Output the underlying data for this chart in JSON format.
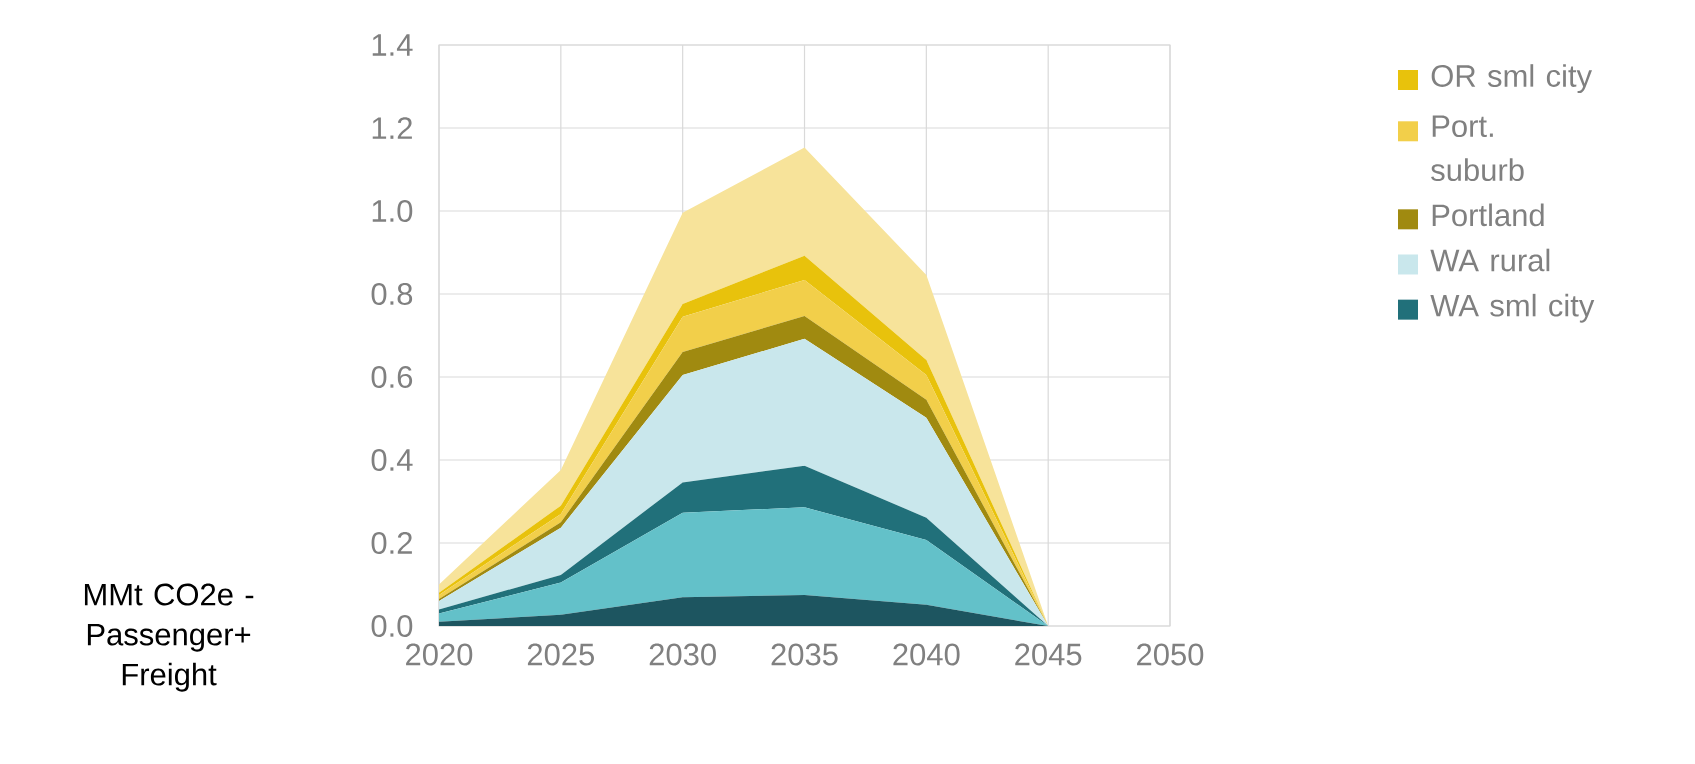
{
  "chart_data": {
    "type": "area",
    "stacked": true,
    "ylabel": "MMt CO2e - Passenger+ Freight",
    "x": [
      2020,
      2025,
      2030,
      2035,
      2040,
      2045
    ],
    "xlim": [
      2020,
      2050
    ],
    "xticks": [
      2020,
      2025,
      2030,
      2035,
      2040,
      2045,
      2050
    ],
    "ylim": [
      0,
      1.4
    ],
    "yticks": [
      {
        "value": 0,
        "label": "0.0"
      },
      {
        "value": 0.2,
        "label": "0.2"
      },
      {
        "value": 0.4,
        "label": "0.4"
      },
      {
        "value": 0.6,
        "label": "0.6"
      },
      {
        "value": 0.8,
        "label": "0.8"
      },
      {
        "value": 1.0,
        "label": "1.0"
      },
      {
        "value": 1.2,
        "label": "1.2"
      },
      {
        "value": 1.4,
        "label": "1.4"
      }
    ],
    "grid": true,
    "legend": "right",
    "series": [
      {
        "color": "#1d5560",
        "values": [
          0.01,
          0.027,
          0.069,
          0.075,
          0.051,
          0
        ]
      },
      {
        "color": "#63c1c9",
        "values": [
          0.02,
          0.078,
          0.204,
          0.211,
          0.156,
          0
        ]
      },
      {
        "name": "WA sml city",
        "color": "#21707a",
        "values": [
          0.01,
          0.018,
          0.073,
          0.1,
          0.054,
          0
        ]
      },
      {
        "name": "WA rural",
        "color": "#c9e7ec",
        "values": [
          0.02,
          0.114,
          0.259,
          0.306,
          0.241,
          0
        ]
      },
      {
        "name": "Portland",
        "color": "#a08a10",
        "values": [
          0.005,
          0.013,
          0.055,
          0.055,
          0.043,
          0
        ]
      },
      {
        "name": "Port. suburb",
        "color": "#f2cf4a",
        "values": [
          0.01,
          0.02,
          0.085,
          0.087,
          0.06,
          0
        ]
      },
      {
        "name": "OR sml city",
        "color": "#e8c20c",
        "values": [
          0.005,
          0.02,
          0.031,
          0.058,
          0.036,
          0
        ]
      },
      {
        "color": "#f7e39a",
        "values": [
          0.02,
          0.086,
          0.22,
          0.261,
          0.205,
          0
        ]
      }
    ]
  }
}
